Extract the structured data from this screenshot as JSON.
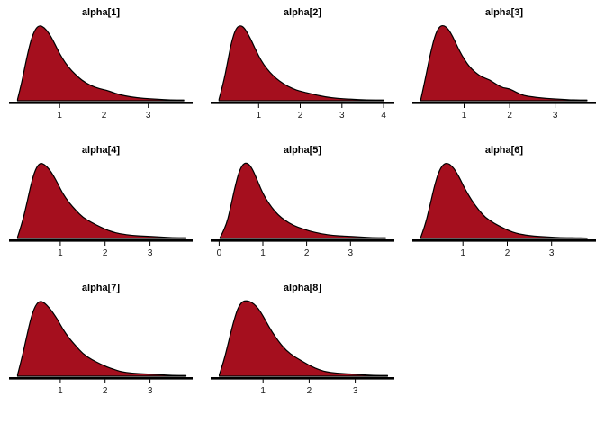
{
  "page": {
    "background": "#ffffff"
  },
  "colors": {
    "density_fill": "#a50f1e",
    "density_stroke": "#000000",
    "axis": "#000000",
    "tick_label": "#1a1a1a"
  },
  "chart_data": [
    {
      "type": "area",
      "title": "alpha[1]",
      "xlabel": "",
      "ylabel": "",
      "xlim": [
        0,
        3.9
      ],
      "xticks": [
        1,
        2,
        3
      ],
      "x": [
        0.05,
        0.15,
        0.25,
        0.35,
        0.45,
        0.55,
        0.65,
        0.75,
        0.85,
        0.95,
        1.05,
        1.2,
        1.35,
        1.5,
        1.7,
        1.9,
        2.05,
        2.2,
        2.35,
        2.6,
        2.9,
        3.2,
        3.5,
        3.8
      ],
      "density": [
        0.02,
        0.25,
        0.55,
        0.8,
        0.95,
        1.0,
        0.97,
        0.9,
        0.8,
        0.68,
        0.57,
        0.44,
        0.35,
        0.27,
        0.2,
        0.16,
        0.14,
        0.11,
        0.08,
        0.05,
        0.03,
        0.02,
        0.01,
        0.01
      ]
    },
    {
      "type": "area",
      "title": "alpha[2]",
      "xlabel": "",
      "ylabel": "",
      "xlim": [
        0,
        4.15
      ],
      "xticks": [
        1,
        2,
        3,
        4
      ],
      "x": [
        0.05,
        0.15,
        0.25,
        0.35,
        0.45,
        0.55,
        0.65,
        0.75,
        0.85,
        0.95,
        1.05,
        1.2,
        1.35,
        1.5,
        1.7,
        1.9,
        2.05,
        2.2,
        2.35,
        2.6,
        2.9,
        3.2,
        3.6,
        4.0
      ],
      "density": [
        0.02,
        0.22,
        0.5,
        0.78,
        0.95,
        1.0,
        0.97,
        0.88,
        0.77,
        0.65,
        0.54,
        0.42,
        0.33,
        0.26,
        0.19,
        0.14,
        0.12,
        0.1,
        0.08,
        0.05,
        0.03,
        0.02,
        0.01,
        0.01
      ]
    },
    {
      "type": "area",
      "title": "alpha[3]",
      "xlabel": "",
      "ylabel": "",
      "xlim": [
        0,
        3.8
      ],
      "xticks": [
        1,
        2,
        3
      ],
      "x": [
        0.05,
        0.15,
        0.25,
        0.35,
        0.45,
        0.55,
        0.65,
        0.75,
        0.85,
        0.95,
        1.1,
        1.25,
        1.4,
        1.55,
        1.7,
        1.85,
        2.0,
        2.15,
        2.3,
        2.5,
        2.8,
        3.1,
        3.4,
        3.7
      ],
      "density": [
        0.02,
        0.3,
        0.6,
        0.85,
        0.98,
        1.0,
        0.95,
        0.85,
        0.72,
        0.6,
        0.46,
        0.37,
        0.31,
        0.28,
        0.22,
        0.17,
        0.16,
        0.11,
        0.07,
        0.05,
        0.03,
        0.02,
        0.01,
        0.01
      ]
    },
    {
      "type": "area",
      "title": "alpha[4]",
      "xlabel": "",
      "ylabel": "",
      "xlim": [
        0,
        3.85
      ],
      "xticks": [
        1,
        2,
        3
      ],
      "x": [
        0.05,
        0.15,
        0.25,
        0.35,
        0.45,
        0.55,
        0.65,
        0.75,
        0.85,
        0.95,
        1.05,
        1.2,
        1.35,
        1.5,
        1.7,
        1.9,
        2.05,
        2.2,
        2.35,
        2.6,
        2.9,
        3.2,
        3.5,
        3.8
      ],
      "density": [
        0.02,
        0.2,
        0.45,
        0.72,
        0.92,
        1.0,
        0.98,
        0.92,
        0.83,
        0.72,
        0.6,
        0.47,
        0.37,
        0.28,
        0.21,
        0.15,
        0.11,
        0.08,
        0.06,
        0.04,
        0.03,
        0.02,
        0.01,
        0.01
      ]
    },
    {
      "type": "area",
      "title": "alpha[5]",
      "xlabel": "",
      "ylabel": "",
      "xlim": [
        -0.05,
        3.9
      ],
      "xticks": [
        0,
        1,
        2,
        3
      ],
      "x": [
        0.02,
        0.15,
        0.25,
        0.35,
        0.45,
        0.55,
        0.65,
        0.75,
        0.85,
        0.95,
        1.05,
        1.2,
        1.35,
        1.5,
        1.7,
        1.9,
        2.05,
        2.2,
        2.35,
        2.6,
        2.9,
        3.2,
        3.5,
        3.8
      ],
      "density": [
        0.01,
        0.15,
        0.38,
        0.65,
        0.88,
        0.99,
        1.0,
        0.93,
        0.8,
        0.66,
        0.54,
        0.41,
        0.31,
        0.24,
        0.17,
        0.13,
        0.1,
        0.08,
        0.06,
        0.04,
        0.03,
        0.02,
        0.01,
        0.01
      ]
    },
    {
      "type": "area",
      "title": "alpha[6]",
      "xlabel": "",
      "ylabel": "",
      "xlim": [
        0,
        3.9
      ],
      "xticks": [
        1,
        2,
        3
      ],
      "x": [
        0.05,
        0.15,
        0.25,
        0.35,
        0.45,
        0.55,
        0.65,
        0.75,
        0.85,
        0.95,
        1.05,
        1.2,
        1.35,
        1.5,
        1.7,
        1.9,
        2.05,
        2.2,
        2.35,
        2.6,
        2.9,
        3.2,
        3.5,
        3.8
      ],
      "density": [
        0.02,
        0.18,
        0.42,
        0.68,
        0.88,
        0.98,
        1.0,
        0.96,
        0.88,
        0.77,
        0.65,
        0.5,
        0.38,
        0.28,
        0.2,
        0.14,
        0.1,
        0.07,
        0.05,
        0.03,
        0.02,
        0.01,
        0.01,
        0.005
      ]
    },
    {
      "type": "area",
      "title": "alpha[7]",
      "xlabel": "",
      "ylabel": "",
      "xlim": [
        0,
        3.85
      ],
      "xticks": [
        1,
        2,
        3
      ],
      "x": [
        0.05,
        0.15,
        0.25,
        0.35,
        0.45,
        0.55,
        0.65,
        0.75,
        0.85,
        0.95,
        1.05,
        1.2,
        1.35,
        1.5,
        1.7,
        1.9,
        2.05,
        2.2,
        2.35,
        2.6,
        2.9,
        3.2,
        3.5,
        3.8
      ],
      "density": [
        0.02,
        0.25,
        0.52,
        0.78,
        0.94,
        1.0,
        0.97,
        0.91,
        0.83,
        0.74,
        0.63,
        0.5,
        0.4,
        0.3,
        0.22,
        0.16,
        0.12,
        0.09,
        0.06,
        0.04,
        0.03,
        0.02,
        0.01,
        0.01
      ]
    },
    {
      "type": "area",
      "title": "alpha[8]",
      "xlabel": "",
      "ylabel": "",
      "xlim": [
        0,
        3.75
      ],
      "xticks": [
        1,
        2,
        3
      ],
      "x": [
        0.05,
        0.15,
        0.25,
        0.35,
        0.45,
        0.55,
        0.65,
        0.75,
        0.85,
        0.95,
        1.05,
        1.2,
        1.35,
        1.5,
        1.7,
        1.9,
        2.05,
        2.2,
        2.35,
        2.6,
        2.9,
        3.1,
        3.4,
        3.7
      ],
      "density": [
        0.02,
        0.2,
        0.45,
        0.7,
        0.9,
        0.99,
        1.0,
        0.98,
        0.93,
        0.85,
        0.74,
        0.58,
        0.45,
        0.34,
        0.25,
        0.18,
        0.13,
        0.09,
        0.06,
        0.04,
        0.03,
        0.02,
        0.01,
        0.01
      ]
    }
  ]
}
